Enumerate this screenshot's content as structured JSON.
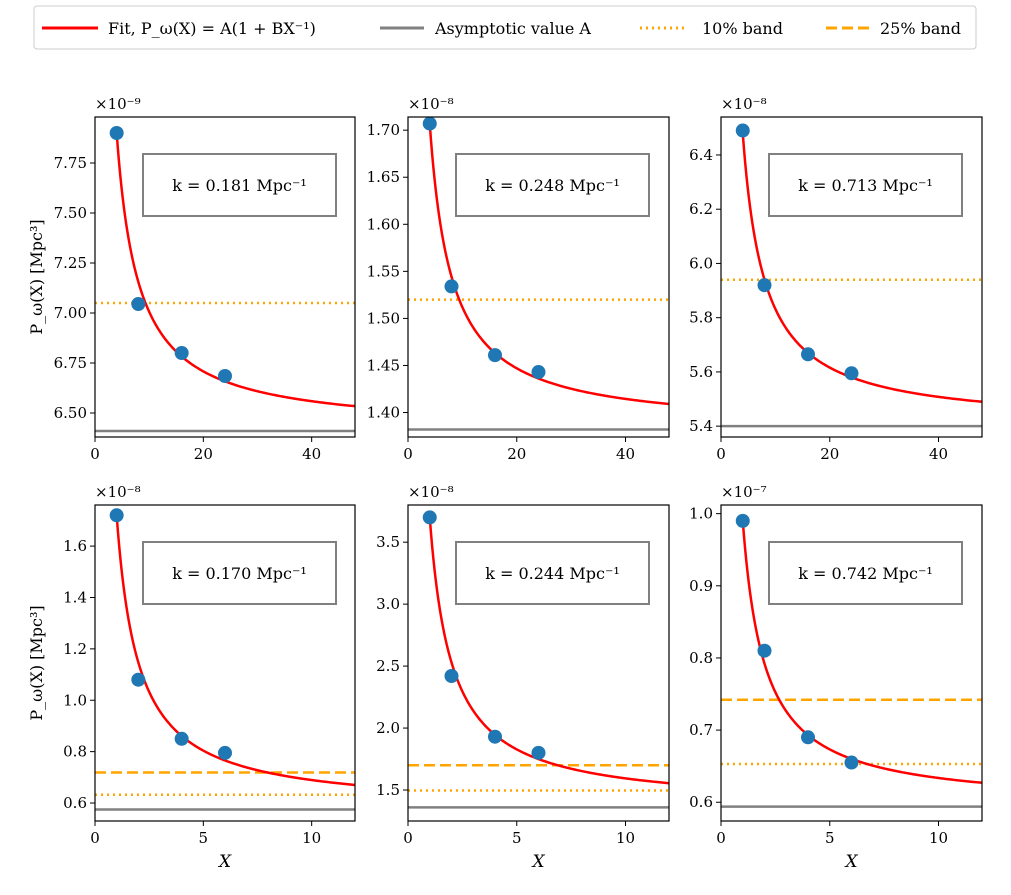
{
  "legend": [
    {
      "label": "Fit, P_ω(X) = A(1 + BX⁻¹)",
      "color": "#ff0000",
      "style": "solid"
    },
    {
      "label": "Asymptotic value A",
      "color": "#808080",
      "style": "solid"
    },
    {
      "label": "10% band",
      "color": "#ffa500",
      "style": "dotted"
    },
    {
      "label": "25% band",
      "color": "#ffa500",
      "style": "dashed"
    }
  ],
  "chart_data": [
    {
      "type": "scatter",
      "k_label": "k = 0.181 Mpc⁻¹",
      "multiplier": "×10⁻⁹",
      "ylabel": "P_ω(X) [Mpc³]",
      "xlabel": "",
      "xlim": [
        0,
        48
      ],
      "ylim": [
        6.38,
        7.98
      ],
      "xticks": [
        0,
        20,
        40
      ],
      "yticks": [
        6.5,
        6.75,
        7.0,
        7.25,
        7.5,
        7.75
      ],
      "ydec": 2,
      "points": {
        "x": [
          4,
          8,
          16,
          24
        ],
        "y": [
          7.9,
          7.045,
          6.8,
          6.685
        ]
      },
      "fit": {
        "A": 6.41,
        "B": 0.93
      },
      "asymptote": 6.41,
      "band10": 7.05,
      "band25": null
    },
    {
      "type": "scatter",
      "k_label": "k = 0.248 Mpc⁻¹",
      "multiplier": "×10⁻⁸",
      "ylabel": "",
      "xlabel": "",
      "xlim": [
        0,
        48
      ],
      "ylim": [
        1.374,
        1.714
      ],
      "xticks": [
        0,
        20,
        40
      ],
      "yticks": [
        1.4,
        1.45,
        1.5,
        1.55,
        1.6,
        1.65,
        1.7
      ],
      "ydec": 2,
      "points": {
        "x": [
          4,
          8,
          16,
          24
        ],
        "y": [
          1.707,
          1.534,
          1.461,
          1.443
        ]
      },
      "fit": {
        "A": 1.382,
        "B": 0.94
      },
      "asymptote": 1.382,
      "band10": 1.52,
      "band25": null
    },
    {
      "type": "scatter",
      "k_label": "k = 0.713 Mpc⁻¹",
      "multiplier": "×10⁻⁸",
      "ylabel": "",
      "xlabel": "",
      "xlim": [
        0,
        48
      ],
      "ylim": [
        5.36,
        6.54
      ],
      "xticks": [
        0,
        20,
        40
      ],
      "yticks": [
        5.4,
        5.6,
        5.8,
        6.0,
        6.2,
        6.4
      ],
      "ydec": 1,
      "points": {
        "x": [
          4,
          8,
          16,
          24
        ],
        "y": [
          6.49,
          5.92,
          5.665,
          5.595
        ]
      },
      "fit": {
        "A": 5.4,
        "B": 0.8
      },
      "asymptote": 5.4,
      "band10": 5.94,
      "band25": null
    },
    {
      "type": "scatter",
      "k_label": "k = 0.170 Mpc⁻¹",
      "multiplier": "×10⁻⁸",
      "ylabel": "P_ω(X) [Mpc³]",
      "xlabel": "X",
      "xlim": [
        0,
        12
      ],
      "ylim": [
        0.53,
        1.76
      ],
      "xticks": [
        0,
        5,
        10
      ],
      "yticks": [
        0.6,
        0.8,
        1.0,
        1.2,
        1.4,
        1.6
      ],
      "ydec": 1,
      "points": {
        "x": [
          1,
          2,
          4,
          6
        ],
        "y": [
          1.72,
          1.08,
          0.85,
          0.795
        ]
      },
      "fit": {
        "A": 0.575,
        "B": 1.99
      },
      "asymptote": 0.575,
      "band10": 0.632,
      "band25": 0.719
    },
    {
      "type": "scatter",
      "k_label": "k = 0.244 Mpc⁻¹",
      "multiplier": "×10⁻⁸",
      "ylabel": "",
      "xlabel": "X",
      "xlim": [
        0,
        12
      ],
      "ylim": [
        1.25,
        3.8
      ],
      "xticks": [
        0,
        5,
        10
      ],
      "yticks": [
        1.5,
        2.0,
        2.5,
        3.0,
        3.5
      ],
      "ydec": 1,
      "points": {
        "x": [
          1,
          2,
          4,
          6
        ],
        "y": [
          3.7,
          2.42,
          1.93,
          1.8
        ]
      },
      "fit": {
        "A": 1.36,
        "B": 1.72
      },
      "asymptote": 1.36,
      "band10": 1.496,
      "band25": 1.7
    },
    {
      "type": "scatter",
      "k_label": "k = 0.742 Mpc⁻¹",
      "multiplier": "×10⁻⁷",
      "ylabel": "",
      "xlabel": "X",
      "xlim": [
        0,
        12
      ],
      "ylim": [
        0.574,
        1.012
      ],
      "xticks": [
        0,
        5,
        10
      ],
      "yticks": [
        0.6,
        0.7,
        0.8,
        0.9,
        1.0
      ],
      "ydec": 1,
      "points": {
        "x": [
          1,
          2,
          4,
          6
        ],
        "y": [
          0.99,
          0.81,
          0.69,
          0.655
        ]
      },
      "fit": {
        "A": 0.594,
        "B": 0.667
      },
      "asymptote": 0.594,
      "band10": 0.653,
      "band25": 0.742
    }
  ]
}
